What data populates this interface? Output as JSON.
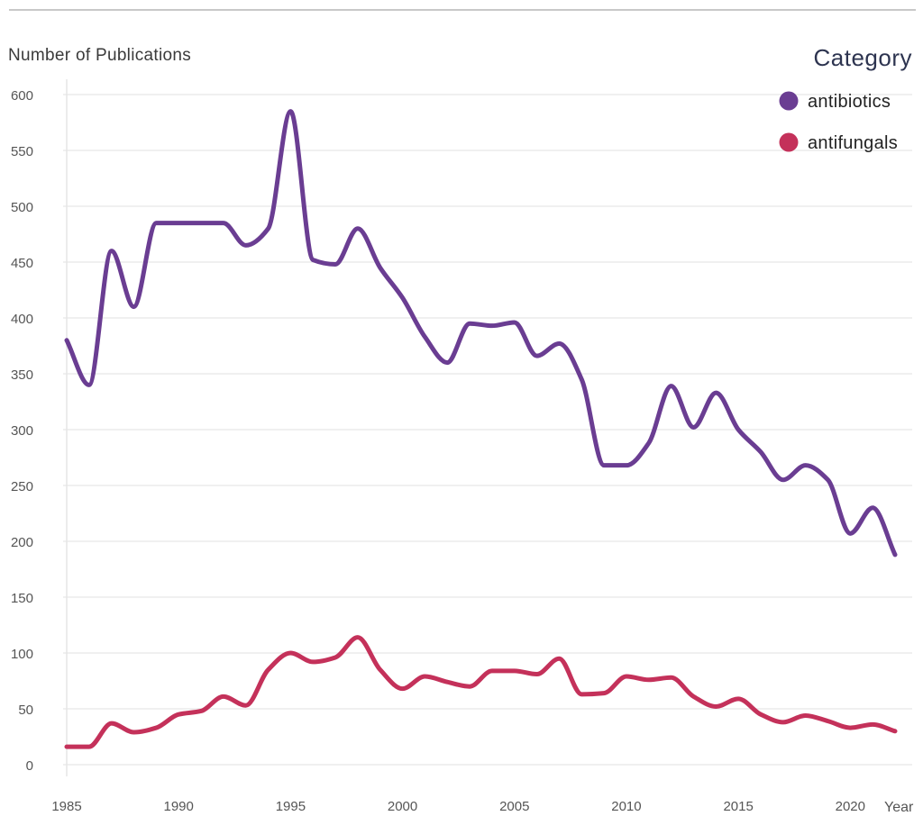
{
  "chart_data": {
    "type": "line",
    "ylabel": "Number of Publications",
    "xlabel": "Year",
    "xlim": [
      1985,
      2022
    ],
    "ylim": [
      0,
      600
    ],
    "y_ticks": [
      0,
      50,
      100,
      150,
      200,
      250,
      300,
      350,
      400,
      450,
      500,
      550,
      600
    ],
    "x_ticks": [
      1985,
      1990,
      1995,
      2000,
      2005,
      2010,
      2015,
      2020
    ],
    "grid": "horizontal",
    "legend": {
      "title": "Category",
      "placement": "top-right"
    },
    "x": [
      1985,
      1986,
      1987,
      1988,
      1989,
      1990,
      1991,
      1992,
      1993,
      1994,
      1995,
      1996,
      1997,
      1998,
      1999,
      2000,
      2001,
      2002,
      2003,
      2004,
      2005,
      2006,
      2007,
      2008,
      2009,
      2010,
      2011,
      2012,
      2013,
      2014,
      2015,
      2016,
      2017,
      2018,
      2019,
      2020,
      2021,
      2022
    ],
    "series": [
      {
        "name": "antibiotics",
        "color": "#6a3d92",
        "values": [
          380,
          340,
          460,
          410,
          485,
          485,
          485,
          485,
          465,
          480,
          585,
          452,
          448,
          480,
          445,
          418,
          383,
          360,
          395,
          393,
          396,
          366,
          377,
          345,
          268,
          268,
          288,
          339,
          302,
          333,
          300,
          280,
          255,
          268,
          255,
          207,
          230,
          188
        ]
      },
      {
        "name": "antifungals",
        "color": "#c4315a",
        "values": [
          16,
          16,
          37,
          29,
          33,
          45,
          48,
          61,
          53,
          85,
          100,
          92,
          96,
          114,
          85,
          68,
          79,
          74,
          70,
          84,
          84,
          81,
          95,
          63,
          64,
          79,
          76,
          78,
          61,
          52,
          59,
          45,
          38,
          44,
          39,
          33,
          36,
          30
        ]
      }
    ]
  }
}
